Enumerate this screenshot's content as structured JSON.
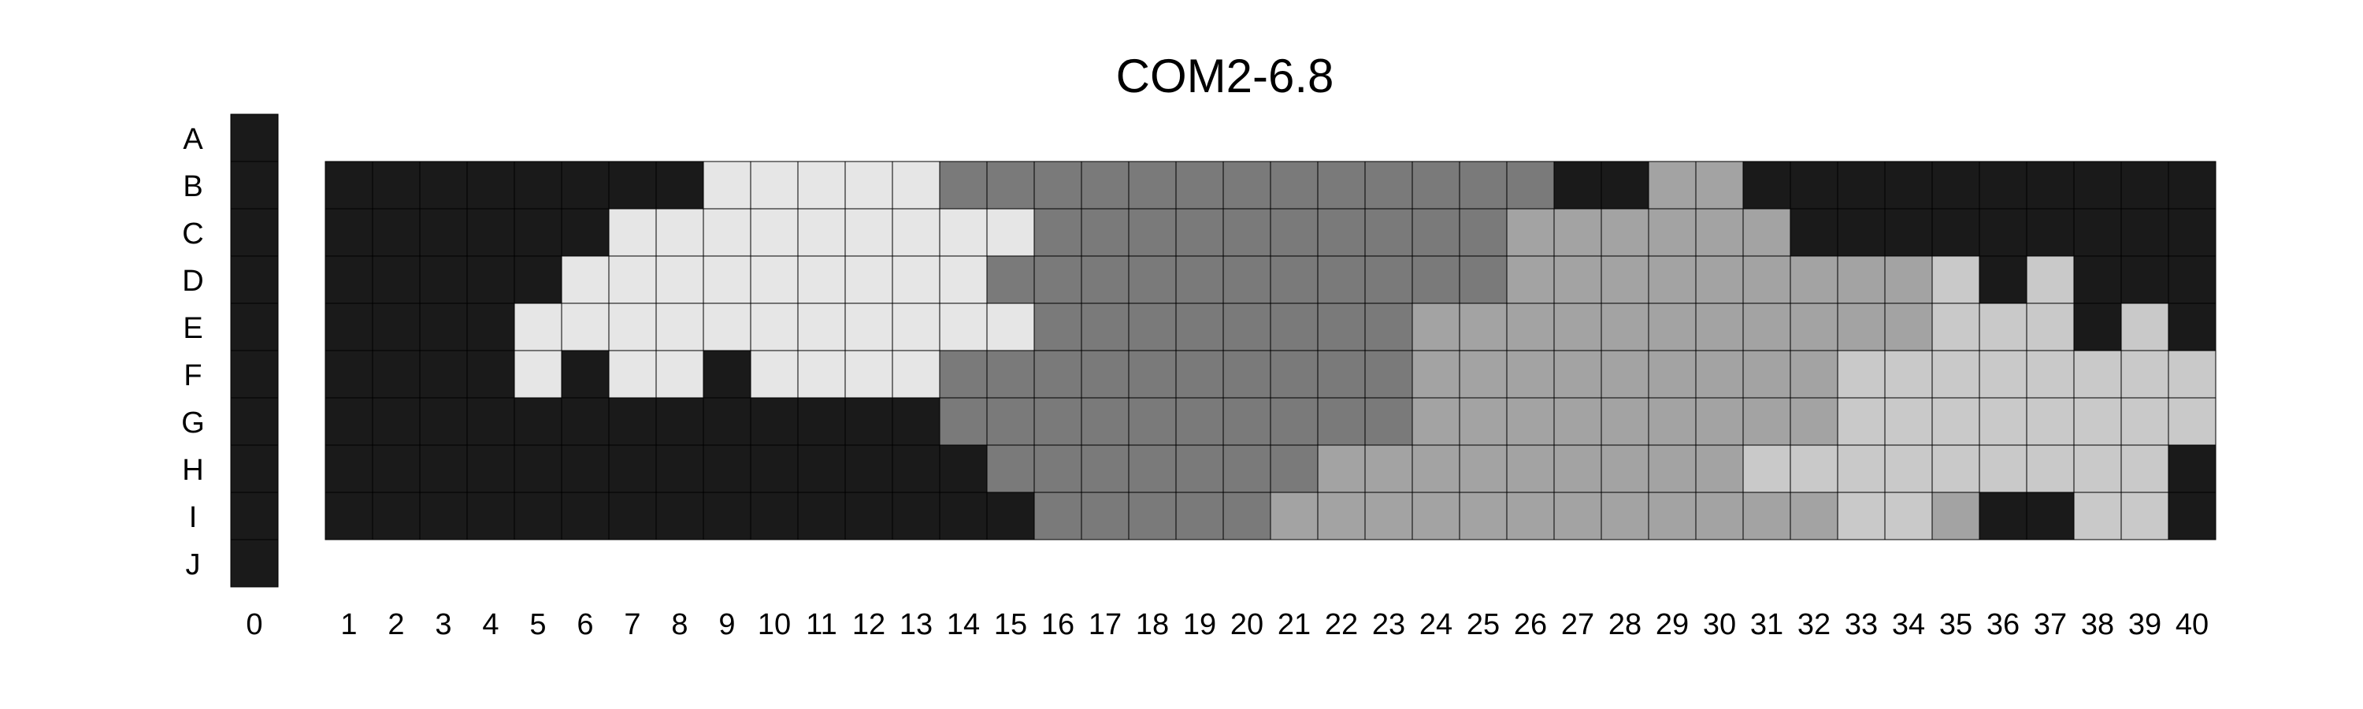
{
  "chart_data": {
    "type": "heatmap",
    "title": "COM2-6.8",
    "row_labels": [
      "A",
      "B",
      "C",
      "D",
      "E",
      "F",
      "G",
      "H",
      "I",
      "J"
    ],
    "column_zero_label": "0",
    "column_labels": [
      "1",
      "2",
      "3",
      "4",
      "5",
      "6",
      "7",
      "8",
      "9",
      "10",
      "11",
      "12",
      "13",
      "14",
      "15",
      "16",
      "17",
      "18",
      "19",
      "20",
      "21",
      "22",
      "23",
      "24",
      "25",
      "26",
      "27",
      "28",
      "29",
      "30",
      "31",
      "32",
      "33",
      "34",
      "35",
      "36",
      "37",
      "38",
      "39",
      "40"
    ],
    "column_zero_rows": [
      "A",
      "B",
      "C",
      "D",
      "E",
      "F",
      "G",
      "H",
      "I",
      "J"
    ],
    "grid_rows": [
      "B",
      "C",
      "D",
      "E",
      "F",
      "G",
      "H",
      "I"
    ],
    "level_colors": {
      "0": "#1a1a1a",
      "1": "#e6e6e6",
      "2": "#7a7a7a",
      "3": "#a3a3a3",
      "4": "#c9c9c9"
    },
    "column_zero_levels": [
      0,
      0,
      0,
      0,
      0,
      0,
      0,
      0,
      0,
      0
    ],
    "grid_levels": [
      [
        0,
        0,
        0,
        0,
        0,
        0,
        0,
        0,
        1,
        1,
        1,
        1,
        1,
        2,
        2,
        2,
        2,
        2,
        2,
        2,
        2,
        2,
        2,
        2,
        2,
        2,
        0,
        0,
        3,
        3,
        0,
        0,
        0,
        0,
        0,
        0,
        0,
        0,
        0,
        0
      ],
      [
        0,
        0,
        0,
        0,
        0,
        0,
        1,
        1,
        1,
        1,
        1,
        1,
        1,
        1,
        1,
        2,
        2,
        2,
        2,
        2,
        2,
        2,
        2,
        2,
        2,
        3,
        3,
        3,
        3,
        3,
        3,
        0,
        0,
        0,
        0,
        0,
        0,
        0,
        0,
        0
      ],
      [
        0,
        0,
        0,
        0,
        0,
        1,
        1,
        1,
        1,
        1,
        1,
        1,
        1,
        1,
        2,
        2,
        2,
        2,
        2,
        2,
        2,
        2,
        2,
        2,
        2,
        3,
        3,
        3,
        3,
        3,
        3,
        3,
        3,
        3,
        4,
        0,
        4,
        0,
        0,
        0
      ],
      [
        0,
        0,
        0,
        0,
        1,
        1,
        1,
        1,
        1,
        1,
        1,
        1,
        1,
        1,
        1,
        2,
        2,
        2,
        2,
        2,
        2,
        2,
        2,
        3,
        3,
        3,
        3,
        3,
        3,
        3,
        3,
        3,
        3,
        3,
        4,
        4,
        4,
        0,
        4,
        0
      ],
      [
        0,
        0,
        0,
        0,
        1,
        0,
        1,
        1,
        0,
        1,
        1,
        1,
        1,
        2,
        2,
        2,
        2,
        2,
        2,
        2,
        2,
        2,
        2,
        3,
        3,
        3,
        3,
        3,
        3,
        3,
        3,
        3,
        4,
        4,
        4,
        4,
        4,
        4,
        4,
        4
      ],
      [
        0,
        0,
        0,
        0,
        0,
        0,
        0,
        0,
        0,
        0,
        0,
        0,
        0,
        2,
        2,
        2,
        2,
        2,
        2,
        2,
        2,
        2,
        2,
        3,
        3,
        3,
        3,
        3,
        3,
        3,
        3,
        3,
        4,
        4,
        4,
        4,
        4,
        4,
        4,
        4
      ],
      [
        0,
        0,
        0,
        0,
        0,
        0,
        0,
        0,
        0,
        0,
        0,
        0,
        0,
        0,
        2,
        2,
        2,
        2,
        2,
        2,
        2,
        3,
        3,
        3,
        3,
        3,
        3,
        3,
        3,
        3,
        4,
        4,
        4,
        4,
        4,
        4,
        4,
        4,
        4,
        0
      ],
      [
        0,
        0,
        0,
        0,
        0,
        0,
        0,
        0,
        0,
        0,
        0,
        0,
        0,
        0,
        0,
        2,
        2,
        2,
        2,
        2,
        3,
        3,
        3,
        3,
        3,
        3,
        3,
        3,
        3,
        3,
        3,
        3,
        4,
        4,
        3,
        0,
        0,
        4,
        4,
        0
      ]
    ],
    "grid": false,
    "legend": "none"
  }
}
